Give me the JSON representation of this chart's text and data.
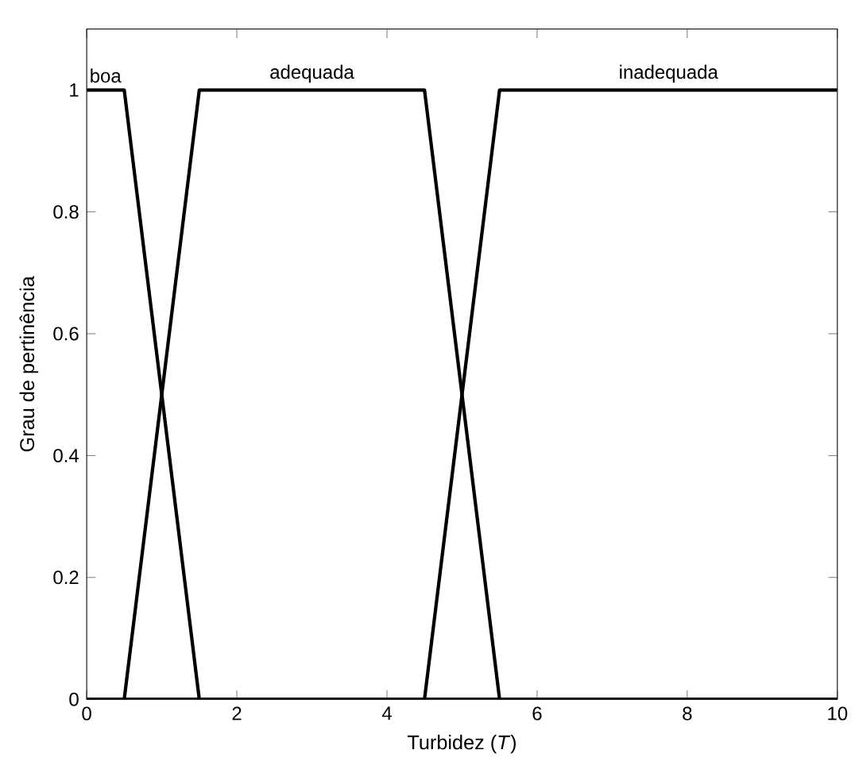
{
  "chart_data": {
    "type": "line",
    "xlabel": "Turbidez (*T*)",
    "ylabel": "Grau de pertinência",
    "xlim": [
      0,
      10
    ],
    "ylim": [
      0,
      1.1
    ],
    "xticks": [
      0,
      2,
      4,
      6,
      8,
      10
    ],
    "yticks": [
      0,
      0.2,
      0.4,
      0.6,
      0.8,
      1
    ],
    "grid": false,
    "legend": false,
    "marker": "none",
    "line_style": "solid",
    "series": [
      {
        "name": "boa",
        "color": "#000000",
        "x": [
          0,
          0.5,
          1.5,
          10
        ],
        "values": [
          1,
          1,
          0,
          0
        ]
      },
      {
        "name": "adequada",
        "color": "#000000",
        "x": [
          0,
          0.5,
          1.5,
          4.5,
          5.5,
          10
        ],
        "values": [
          0,
          0,
          1,
          1,
          0,
          0
        ]
      },
      {
        "name": "inadequada",
        "color": "#000000",
        "x": [
          0,
          4.5,
          5.5,
          10
        ],
        "values": [
          0,
          0,
          1,
          1
        ]
      }
    ]
  }
}
